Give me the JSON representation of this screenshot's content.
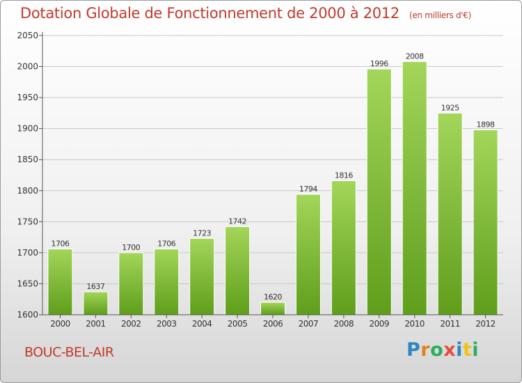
{
  "header": {
    "title": "Dotation Globale de Fonctionnement de 2000 à 2012",
    "unit": "(en milliers d'€)"
  },
  "footer": {
    "city": "BOUC-BEL-AIR",
    "logo": "Proxiti"
  },
  "colors": {
    "title": "#c0392b",
    "bar_top": "#a3d65a",
    "bar_bottom": "#5f9e1b",
    "axis": "#555555",
    "grid": "#c8c8c8"
  },
  "chart_data": {
    "type": "bar",
    "categories": [
      "2000",
      "2001",
      "2002",
      "2003",
      "2004",
      "2005",
      "2006",
      "2007",
      "2008",
      "2009",
      "2010",
      "2011",
      "2012"
    ],
    "values": [
      1706,
      1637,
      1700,
      1706,
      1723,
      1742,
      1620,
      1794,
      1816,
      1996,
      2008,
      1925,
      1898
    ],
    "data_labels": [
      "1706",
      "1637",
      "1700",
      "1706",
      "1723",
      "1742",
      "1620",
      "1794",
      "1816",
      "1996",
      "2008",
      "1925",
      "1898"
    ],
    "y_ticks": [
      1600,
      1650,
      1700,
      1750,
      1800,
      1850,
      1900,
      1950,
      2000,
      2050
    ],
    "ylim": [
      1600,
      2050
    ],
    "grid": true,
    "legend": "none"
  }
}
